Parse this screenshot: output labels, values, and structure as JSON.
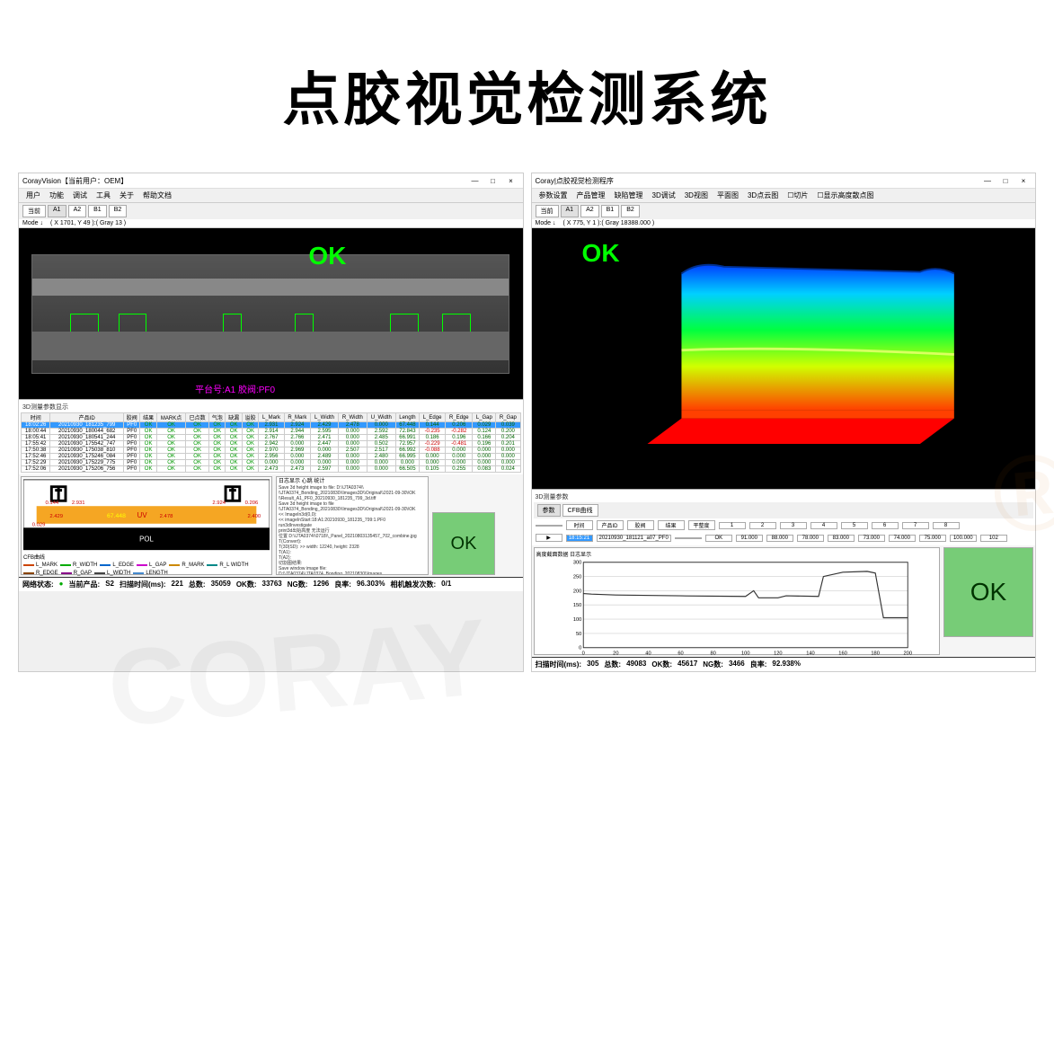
{
  "page_title": "点胶视觉检测系统",
  "left_window": {
    "title": "CorayVision【当前用户：OEM】",
    "menus": [
      "用户",
      "功能",
      "调试",
      "工具",
      "关于",
      "帮助文档"
    ],
    "current_label": "当前",
    "tabs": [
      "A1",
      "A2",
      "B1",
      "B2"
    ],
    "mode_label": "Mode ↓",
    "coord": "( X 1701, Y 49 ):( Gray 13 )",
    "ok_text": "OK",
    "platform_text": "平台号:A1     胶阀:PF0",
    "table_header": [
      "时间",
      "产品ID",
      "胶阀",
      "结果",
      "MARK点",
      "已点数",
      "气泡",
      "缺漏",
      "溢胶",
      "L_Mark",
      "R_Mark",
      "L_Width",
      "R_Width",
      "U_Width",
      "Length",
      "L_Edge",
      "R_Edge",
      "L_Gap",
      "R_Gap"
    ],
    "table_rows": [
      [
        "18:02:26",
        "20210930_181235_799",
        "PF0",
        "OK",
        "OK",
        "OK",
        "OK",
        "OK",
        "OK",
        "2.931",
        "2.924",
        "2.429",
        "2.478",
        "0.000",
        "67.448",
        "0.144",
        "0.206",
        "0.029",
        "0.039"
      ],
      [
        "18:00:44",
        "20210930_180044_682",
        "PF0",
        "OK",
        "OK",
        "OK",
        "OK",
        "OK",
        "OK",
        "2.914",
        "2.944",
        "2.595",
        "0.000",
        "2.592",
        "72.843",
        "-0.235",
        "-0.282",
        "0.124",
        "0.200"
      ],
      [
        "18:05:41",
        "20210930_180541_244",
        "PF0",
        "OK",
        "OK",
        "OK",
        "OK",
        "OK",
        "OK",
        "2.767",
        "2.766",
        "2.471",
        "0.000",
        "2.485",
        "66.991",
        "0.186",
        "0.196",
        "0.166",
        "0.204"
      ],
      [
        "17:55:42",
        "20210930_175542_747",
        "PF0",
        "OK",
        "OK",
        "OK",
        "OK",
        "OK",
        "OK",
        "2.942",
        "0.000",
        "2.447",
        "0.000",
        "0.502",
        "72.957",
        "-0.229",
        "-0.481",
        "0.196",
        "0.201"
      ],
      [
        "17:50:38",
        "20210930_175038_810",
        "PF0",
        "OK",
        "OK",
        "OK",
        "OK",
        "OK",
        "OK",
        "2.970",
        "2.969",
        "0.000",
        "2.507",
        "2.517",
        "66.992",
        "-0.088",
        "0.000",
        "0.000",
        "0.000"
      ],
      [
        "17:52:46",
        "20210930_175246_084",
        "PF0",
        "OK",
        "OK",
        "OK",
        "OK",
        "OK",
        "OK",
        "2.956",
        "0.000",
        "2.489",
        "0.000",
        "2.480",
        "66.995",
        "0.000",
        "0.000",
        "0.000",
        "0.000"
      ],
      [
        "17:52:29",
        "20210930_175229_775",
        "PF0",
        "OK",
        "OK",
        "OK",
        "OK",
        "OK",
        "OK",
        "0.000",
        "0.000",
        "0.000",
        "0.000",
        "0.000",
        "0.000",
        "0.000",
        "0.000",
        "0.000",
        "0.000"
      ],
      [
        "17:52:06",
        "20210930_175206_756",
        "PF0",
        "OK",
        "OK",
        "OK",
        "OK",
        "OK",
        "OK",
        "2.473",
        "2.473",
        "2.597",
        "0.000",
        "0.000",
        "66.505",
        "0.105",
        "0.255",
        "0.083",
        "0.024"
      ]
    ],
    "diagram": {
      "values": [
        "0.144",
        "2.931",
        "2.924",
        "0.206",
        "2.429",
        "67.448",
        "2.478",
        "2.400",
        "0.029"
      ],
      "uv_label": "UV",
      "pol_label": "POL"
    },
    "legend": [
      {
        "color": "#c40",
        "label": "L_MARK"
      },
      {
        "color": "#0a0",
        "label": "R_WIDTH"
      },
      {
        "color": "#06c",
        "label": "L_EDGE"
      },
      {
        "color": "#c0c",
        "label": "L_GAP"
      },
      {
        "color": "#c80",
        "label": "R_MARK"
      },
      {
        "color": "#088",
        "label": "R_L WIDTH"
      },
      {
        "color": "#840",
        "label": "R_EDGE"
      },
      {
        "color": "#808",
        "label": "R_GAP"
      },
      {
        "color": "#444",
        "label": "L_WIDTH"
      },
      {
        "color": "#48c",
        "label": "LENGTH"
      }
    ],
    "cfb_label": "CFB曲线",
    "log_title": "日志显示 心跳 统计",
    "log_lines": [
      "Save 3d height image to file: D:\\\\JTA0374\\\\",
      "\\\\JTA0374_Bonding_20210830\\\\Images3D\\\\Original\\\\2021-09-30\\\\OK",
      "\\\\Result_A1_PF0_20210930_181235_799_3d.tiff",
      "Save 3d height image to file",
      "\\\\JTA0374_Bonding_20210830\\\\Images3D\\\\Original\\\\2021-09-30\\\\OK",
      "<<  ImageIn3d(0,0):",
      "<<  imageInStart:18:A1:20210930_181235_799:1.PF0",
      "run3dInvestigate",
      "print3d出始高度 无法运行",
      "位置 D:\\\\JTA0374\\\\0718\\\\_Panel_20210803135457_702_combine.jpg",
      "T(Convert):",
      "T(3D|SD): >> width: 12240, height: 2328",
      "T(A1):",
      "T(A2):",
      "切割图结果:",
      "Save window image file: D:\\\\JTA0374\\\\JTA0374_Bonding_20210830\\\\Images",
      "\\\\Result\\\\2021-09-30\\\\OK\\\\Result_A1_PF0_20210930_181235_799_240.jpg compress",
      "切割图结果:",
      "Save to file: D:\\\\JTA0374\\\\JTA0374_Bonding_20210830\\\\Images\\\\OriginalFile",
      "\\\\2021-09-30\\\\Panel_PF0_20210930_181235_799_702_combine.jpg"
    ],
    "status": {
      "net_label": "网络状态:",
      "net_val": "●",
      "product_label": "当前产品:",
      "product_val": "S2",
      "scan_label": "扫描时间(ms):",
      "scan_val": "221",
      "total_label": "总数:",
      "total_val": "35059",
      "ok_label": "OK数:",
      "ok_val": "33763",
      "ng_label": "NG数:",
      "ng_val": "1296",
      "rate_label": "良率:",
      "rate_val": "96.303%",
      "trigger_label": "相机触发次数:",
      "trigger_val": "0/1"
    }
  },
  "right_window": {
    "title": "Coray|点胶视觉检测程序",
    "menus": [
      "参数设置",
      "产品管理",
      "缺陷管理",
      "3D调试",
      "3D视图",
      "平面图",
      "3D点云图",
      "☐切片",
      "☐显示高度散点图"
    ],
    "current_label": "当前",
    "tabs": [
      "A1",
      "A2",
      "B1",
      "B2"
    ],
    "mode_label": "Mode ↓",
    "coord": "( X 775, Y 1 ):( Gray 18388.000 )",
    "ok_text": "OK",
    "measure_label": "3D测量参数",
    "sub_tabs": [
      "参数",
      "CFB曲线"
    ],
    "data_row": {
      "headers": [
        "",
        "时间",
        "产品ID",
        "胶阀",
        "结果",
        "平整度",
        "1",
        "2",
        "3",
        "4",
        "5",
        "6",
        "7",
        "8"
      ],
      "values": [
        "▶",
        "18:15:21",
        "20210930_181121_a07_PF0",
        "",
        "OK",
        "91.000",
        "88.000",
        "78.000",
        "83.000",
        "73.000",
        "74.000",
        "75.000",
        "100.000",
        "102"
      ]
    },
    "chart_label": "高度截面数据 日志显示",
    "chart": {
      "ylim": [
        0,
        300
      ],
      "yticks": [
        0,
        50,
        100,
        150,
        200,
        250,
        300
      ],
      "xlim": [
        0,
        200
      ],
      "xticks": [
        0,
        20,
        40,
        60,
        80,
        100,
        120,
        140,
        160,
        180,
        200
      ],
      "series_color": "#333",
      "data": [
        [
          0,
          190
        ],
        [
          5,
          188
        ],
        [
          20,
          185
        ],
        [
          60,
          182
        ],
        [
          100,
          180
        ],
        [
          105,
          200
        ],
        [
          108,
          175
        ],
        [
          120,
          175
        ],
        [
          125,
          182
        ],
        [
          145,
          180
        ],
        [
          148,
          250
        ],
        [
          160,
          265
        ],
        [
          175,
          268
        ],
        [
          180,
          262
        ],
        [
          185,
          105
        ],
        [
          200,
          105
        ]
      ]
    },
    "status": {
      "scan_label": "扫描时间(ms):",
      "scan_val": "305",
      "total_label": "总数:",
      "total_val": "49083",
      "ok_label": "OK数:",
      "ok_val": "45617",
      "ng_label": "NG数:",
      "ng_val": "3466",
      "rate_label": "良率:",
      "rate_val": "92.938%"
    }
  },
  "colors": {
    "ok_green": "#66bb66",
    "ok_text": "#0a0",
    "heatmap": [
      "#0000ff",
      "#00ffff",
      "#00ff00",
      "#ffff00",
      "#ff8000",
      "#ff0000"
    ]
  }
}
